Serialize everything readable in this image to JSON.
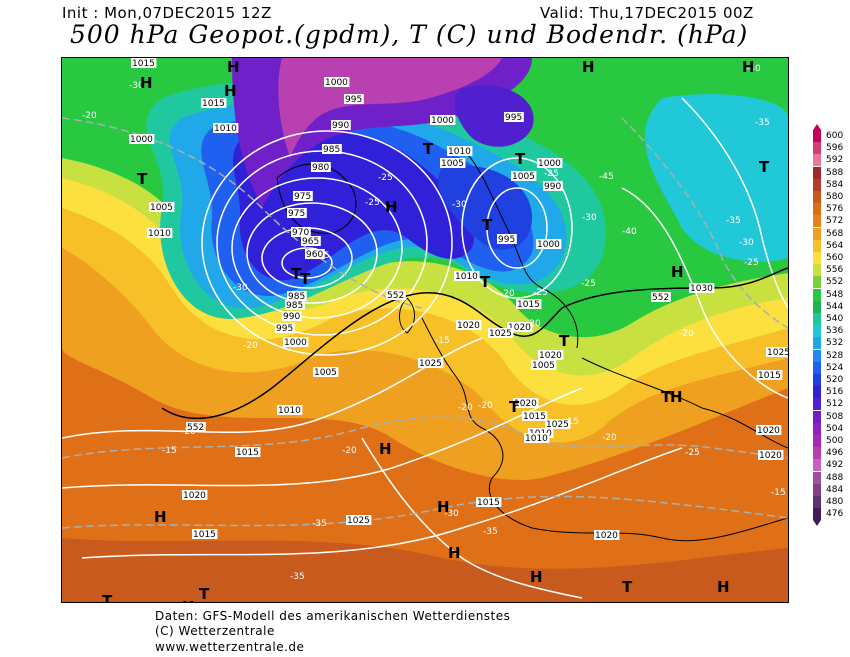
{
  "header": {
    "init": "Init : Mon,07DEC2015 12Z",
    "valid": "Valid: Thu,17DEC2015 00Z",
    "title": "500 hPa Geopot.(gpdm), T (C) und Bodendr. (hPa)"
  },
  "footer": {
    "line1": "Daten: GFS-Modell des amerikanischen Wetterdienstes",
    "line2": "(C) Wetterzentrale",
    "line3": "www.wetterzentrale.de"
  },
  "legend": {
    "labels": [
      "600",
      "596",
      "592",
      "588",
      "584",
      "580",
      "576",
      "572",
      "568",
      "564",
      "560",
      "556",
      "552",
      "548",
      "544",
      "540",
      "536",
      "532",
      "528",
      "524",
      "520",
      "516",
      "512",
      "508",
      "504",
      "500",
      "496",
      "492",
      "488",
      "484",
      "480",
      "476"
    ],
    "colors": [
      "#c8005a",
      "#d83c78",
      "#e8789a",
      "#a0282a",
      "#b43c28",
      "#c85a1e",
      "#dc6e14",
      "#e8821a",
      "#f0a020",
      "#f8c028",
      "#fce040",
      "#c8e040",
      "#78d040",
      "#28c840",
      "#20b450",
      "#20c8a0",
      "#20c8d8",
      "#20a8e8",
      "#2088f0",
      "#2060f0",
      "#2040e0",
      "#3020d8",
      "#5020d0",
      "#7020c8",
      "#9020c0",
      "#a828b8",
      "#b840b0",
      "#c860c0",
      "#a0509c",
      "#804088",
      "#603070",
      "#401c58"
    ]
  },
  "map_labels": {
    "highs": [
      "H",
      "H",
      "H",
      "H",
      "H",
      "H",
      "H",
      "H",
      "H",
      "H",
      "H",
      "H",
      "H",
      "H",
      "H"
    ],
    "lows": [
      "T",
      "T",
      "T",
      "T",
      "T",
      "T",
      "T",
      "T",
      "T",
      "T",
      "T",
      "T",
      "T",
      "T"
    ],
    "pressure": [
      "1015",
      "1015",
      "1010",
      "1000",
      "1005",
      "1010",
      "1000",
      "995",
      "990",
      "985",
      "980",
      "975",
      "975",
      "970",
      "965",
      "960",
      "985",
      "985",
      "990",
      "995",
      "1000",
      "1005",
      "1010",
      "1015",
      "1020",
      "1015",
      "1010",
      "1005",
      "1000",
      "995",
      "990",
      "1005",
      "1010",
      "1015",
      "1020",
      "1025",
      "1020",
      "1020",
      "1025",
      "1020",
      "1015",
      "1025",
      "1030",
      "1025",
      "1020",
      "1005",
      "1010",
      "1015",
      "1025",
      "1020",
      "1015",
      "1020",
      "1000",
      "995",
      "1000",
      "1010"
    ],
    "temps": [
      "-30",
      "-20",
      "-30",
      "-25",
      "-25",
      "-25",
      "-30",
      "-30",
      "-25",
      "-30",
      "-25",
      "-20",
      "-25",
      "-20",
      "-20",
      "-15",
      "-15",
      "-20",
      "-15",
      "-20",
      "-25",
      "-20",
      "-15",
      "-20",
      "-35",
      "-35",
      "-30",
      "-35",
      "-40",
      "-35",
      "-40",
      "-45",
      "-35",
      "-30",
      "-25",
      "-20",
      "-20",
      "-15"
    ],
    "isoline552": [
      "552",
      "552",
      "552"
    ]
  }
}
